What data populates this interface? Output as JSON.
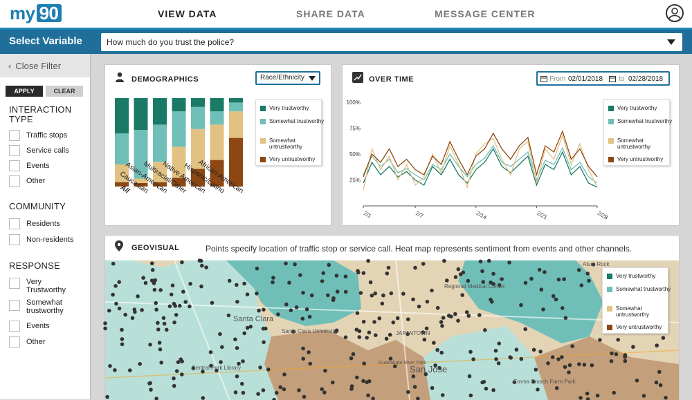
{
  "app": {
    "logo_text": "my",
    "logo_num": "90"
  },
  "nav": {
    "items": [
      {
        "label": "VIEW DATA",
        "active": true
      },
      {
        "label": "SHARE DATA",
        "active": false
      },
      {
        "label": "MESSAGE CENTER",
        "active": false
      }
    ]
  },
  "variable": {
    "label": "Select Variable",
    "selected": "How much do you trust the police?"
  },
  "sidebar": {
    "close_label": "Close Filter",
    "apply_label": "APPLY",
    "clear_label": "CLEAR",
    "sections": [
      {
        "title": "INTERACTION TYPE",
        "options": [
          "Traffic stops",
          "Service calls",
          "Events",
          "Other"
        ]
      },
      {
        "title": "COMMUNITY",
        "options": [
          "Residents",
          "Non-residents"
        ]
      },
      {
        "title": "RESPONSE",
        "options": [
          "Very Trustworthy",
          "Somewhat trustworthy",
          "Events",
          "Other"
        ]
      }
    ]
  },
  "colors": {
    "very_trustworthy": "#1a7a66",
    "somewhat_trustworthy": "#6fbfb8",
    "somewhat_untrustworthy": "#e2c282",
    "very_untrustworthy": "#8d4712"
  },
  "legend": {
    "items": [
      "Very trustworthy",
      "Somewhat trustworthy",
      "Somewhat untrustworthy",
      "Very untrustworthy"
    ]
  },
  "demographics": {
    "title": "DEMOGRAPHICS",
    "dropdown_value": "Race/Ethnicity"
  },
  "overtime": {
    "title": "OVER TIME",
    "from_label": "From",
    "from_date": "02/01/2018",
    "to_label": "to",
    "to_date": "02/28/2018"
  },
  "geovisual": {
    "title": "GEOVISUAL",
    "description": "Points specify location of traffic stop or service call. Heat map represents sentiment from events and other channels.",
    "map_labels": [
      "Santa Clara",
      "Santa Clara University",
      "JAPANTOWN",
      "San Jose",
      "Alum Rock",
      "Regional Medical Center",
      "Central Park Library",
      "Emma Prusch Farm Park",
      "Guadalupe River Park"
    ]
  },
  "chart_data": [
    {
      "type": "bar",
      "stacked": true,
      "normalized": true,
      "categories": [
        "All",
        "Caucasian",
        "Asian-American",
        "Multiracial/Other",
        "Native American",
        "Hispanic/Latino",
        "African-American"
      ],
      "series": [
        {
          "name": "Very untrustworthy",
          "values": [
            0.05,
            0.04,
            0.05,
            0.1,
            0.2,
            0.3,
            0.55
          ]
        },
        {
          "name": "Somewhat untrustworthy",
          "values": [
            0.2,
            0.05,
            0.23,
            0.35,
            0.45,
            0.4,
            0.3
          ]
        },
        {
          "name": "Somewhat trustworthy",
          "values": [
            0.35,
            0.55,
            0.42,
            0.4,
            0.25,
            0.15,
            0.1
          ]
        },
        {
          "name": "Very trustworthy",
          "values": [
            0.4,
            0.36,
            0.3,
            0.15,
            0.1,
            0.15,
            0.05
          ]
        }
      ],
      "ylim": [
        0,
        1
      ],
      "legend_position": "right"
    },
    {
      "type": "line",
      "x_ticks": [
        "2/1",
        "2/7",
        "2/14",
        "2/21",
        "2/28"
      ],
      "y_ticks": [
        "100%",
        "75%",
        "50%",
        "25%"
      ],
      "ylim": [
        0,
        100
      ],
      "days": [
        1,
        2,
        3,
        4,
        5,
        6,
        7,
        8,
        9,
        10,
        11,
        12,
        13,
        14,
        15,
        16,
        17,
        18,
        19,
        20,
        21,
        22,
        23,
        24,
        25,
        26,
        27,
        28
      ],
      "series": [
        {
          "name": "Very trustworthy",
          "values": [
            22,
            42,
            30,
            38,
            28,
            33,
            25,
            20,
            38,
            30,
            45,
            30,
            22,
            35,
            42,
            55,
            38,
            32,
            40,
            48,
            20,
            40,
            35,
            52,
            30,
            38,
            22,
            18
          ]
        },
        {
          "name": "Somewhat trustworthy",
          "values": [
            30,
            48,
            38,
            45,
            32,
            36,
            30,
            25,
            40,
            35,
            50,
            38,
            28,
            40,
            46,
            58,
            42,
            38,
            45,
            52,
            25,
            44,
            40,
            56,
            35,
            42,
            28,
            22
          ]
        },
        {
          "name": "Somewhat untrustworthy",
          "values": [
            15,
            55,
            35,
            48,
            25,
            40,
            20,
            28,
            50,
            32,
            58,
            40,
            18,
            50,
            60,
            65,
            45,
            30,
            55,
            62,
            22,
            55,
            45,
            68,
            40,
            60,
            35,
            18
          ]
        },
        {
          "name": "Very untrustworthy",
          "values": [
            28,
            50,
            42,
            55,
            38,
            45,
            35,
            30,
            48,
            40,
            62,
            45,
            30,
            48,
            55,
            70,
            55,
            45,
            58,
            66,
            30,
            58,
            52,
            72,
            45,
            55,
            38,
            28
          ]
        }
      ],
      "legend_position": "right"
    }
  ]
}
